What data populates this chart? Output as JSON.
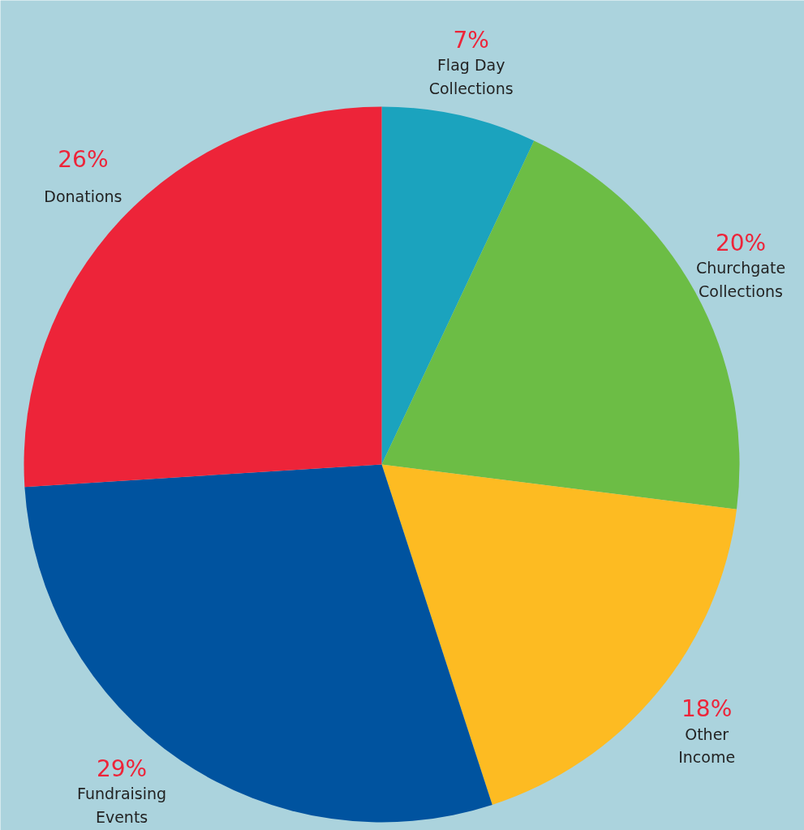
{
  "chart_data": {
    "type": "pie",
    "categories": [
      "Flag Day\nCollections",
      "Churchgate\nCollections",
      "Other\nIncome",
      "Fundraising\nEvents",
      "Donations"
    ],
    "values": [
      7,
      20,
      18,
      29,
      26
    ],
    "colors": [
      "#1ba3be",
      "#6cbd45",
      "#fdbb22",
      "#00539f",
      "#ed2439"
    ],
    "value_labels": [
      "7%",
      "20%",
      "18%",
      "29%",
      "26%"
    ]
  }
}
